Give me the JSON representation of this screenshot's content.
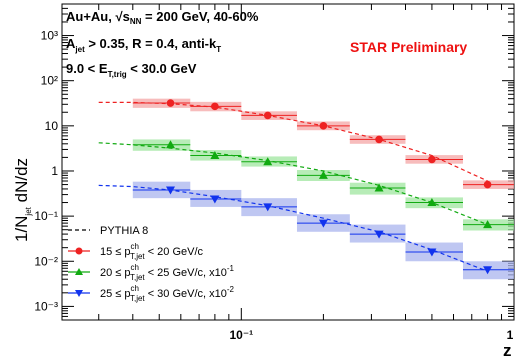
{
  "chart_data": {
    "type": "scatter",
    "title": "",
    "xlabel": "z",
    "ylabel": "1/N_jet dN/dz",
    "xscale": "log",
    "yscale": "log",
    "xlim": [
      0.022,
      1.0
    ],
    "ylim": [
      0.0005,
      5000
    ],
    "x_ticks": [
      "10⁻¹",
      "1"
    ],
    "y_ticks": [
      "10⁻³",
      "10⁻²",
      "10⁻¹",
      "1",
      "10",
      "10²",
      "10³"
    ],
    "annotations": {
      "line1_a": "Au+Au, ",
      "line1_sqrt": "√s",
      "line1_sub": "NN",
      "line1_b": " = 200 GeV, 40-60%",
      "line2_a": "A",
      "line2_sub": "jet",
      "line2_b": " > 0.35, R = 0.4, anti-k",
      "line2_sub2": "T",
      "line3_a": "9.0 < E",
      "line3_sub": "T,trig",
      "line3_b": " < 30.0 GeV",
      "preliminary": "STAR Preliminary"
    },
    "legend": {
      "placement": "bottom-left",
      "pythia": "PYTHIA 8",
      "s1_a": "15 ≤ p",
      "s1_sup": "ch",
      "s1_sub": "T,jet",
      "s1_b": " < 20 GeV/c",
      "s2_a": "20 ≤ p",
      "s2_sup": "ch",
      "s2_sub": "T,jet",
      "s2_b": " < 25 GeV/c, x10",
      "s2_exp": "-1",
      "s3_a": "25 ≤ p",
      "s3_sup": "ch",
      "s3_sub": "T,jet",
      "s3_b": " < 30 GeV/c, x10",
      "s3_exp": "-2"
    },
    "series": [
      {
        "marker": "circle",
        "color": "#ee2222",
        "band_color": "#f4a6a6",
        "x": [
          0.055,
          0.08,
          0.125,
          0.2,
          0.32,
          0.5,
          0.8
        ],
        "y": [
          32,
          27,
          17,
          10,
          5.0,
          1.8,
          0.5
        ],
        "x_low": [
          0.04,
          0.065,
          0.1,
          0.16,
          0.25,
          0.4,
          0.65
        ],
        "x_high": [
          0.065,
          0.1,
          0.16,
          0.25,
          0.4,
          0.65,
          1.0
        ],
        "sys_low": [
          25,
          21,
          13.5,
          8,
          4.0,
          1.45,
          0.4
        ],
        "sys_high": [
          40,
          34,
          21,
          12.5,
          6.2,
          2.25,
          0.62
        ]
      },
      {
        "marker": "triangle-up",
        "color": "#11aa11",
        "band_color": "#9fe69f",
        "x": [
          0.055,
          0.08,
          0.125,
          0.2,
          0.32,
          0.5,
          0.8
        ],
        "y": [
          3.8,
          2.2,
          1.6,
          0.8,
          0.42,
          0.2,
          0.065
        ],
        "x_low": [
          0.04,
          0.065,
          0.1,
          0.16,
          0.25,
          0.4,
          0.65
        ],
        "x_high": [
          0.065,
          0.1,
          0.16,
          0.25,
          0.4,
          0.65,
          1.0
        ],
        "sys_low": [
          2.8,
          1.7,
          1.25,
          0.6,
          0.3,
          0.15,
          0.048
        ],
        "sys_high": [
          5.0,
          2.9,
          2.1,
          1.05,
          0.55,
          0.26,
          0.085
        ]
      },
      {
        "marker": "triangle-down",
        "color": "#1133ee",
        "band_color": "#a9b4ee",
        "x": [
          0.055,
          0.08,
          0.125,
          0.2,
          0.32,
          0.5,
          0.8
        ],
        "y": [
          0.38,
          0.24,
          0.16,
          0.07,
          0.04,
          0.016,
          0.0065
        ],
        "x_low": [
          0.04,
          0.065,
          0.1,
          0.16,
          0.25,
          0.4,
          0.65
        ],
        "x_high": [
          0.065,
          0.1,
          0.16,
          0.25,
          0.4,
          0.65,
          1.0
        ],
        "sys_low": [
          0.25,
          0.16,
          0.1,
          0.045,
          0.026,
          0.01,
          0.004
        ],
        "sys_high": [
          0.58,
          0.38,
          0.25,
          0.11,
          0.065,
          0.026,
          0.01
        ]
      }
    ],
    "pythia": [
      {
        "color": "#ee2222",
        "x": [
          0.03,
          0.04,
          0.055,
          0.08,
          0.125,
          0.2,
          0.32,
          0.5,
          0.8
        ],
        "y": [
          33,
          33,
          31,
          26,
          17,
          10,
          5,
          2.2,
          0.6
        ]
      },
      {
        "color": "#11aa11",
        "x": [
          0.03,
          0.04,
          0.055,
          0.08,
          0.125,
          0.2,
          0.32,
          0.5,
          0.8
        ],
        "y": [
          4.2,
          3.8,
          3.2,
          2.5,
          1.7,
          1.0,
          0.48,
          0.2,
          0.065
        ]
      },
      {
        "color": "#1133ee",
        "x": [
          0.03,
          0.04,
          0.055,
          0.08,
          0.125,
          0.2,
          0.32,
          0.5,
          0.8
        ],
        "y": [
          0.48,
          0.45,
          0.38,
          0.27,
          0.17,
          0.09,
          0.045,
          0.018,
          0.006
        ]
      }
    ]
  }
}
